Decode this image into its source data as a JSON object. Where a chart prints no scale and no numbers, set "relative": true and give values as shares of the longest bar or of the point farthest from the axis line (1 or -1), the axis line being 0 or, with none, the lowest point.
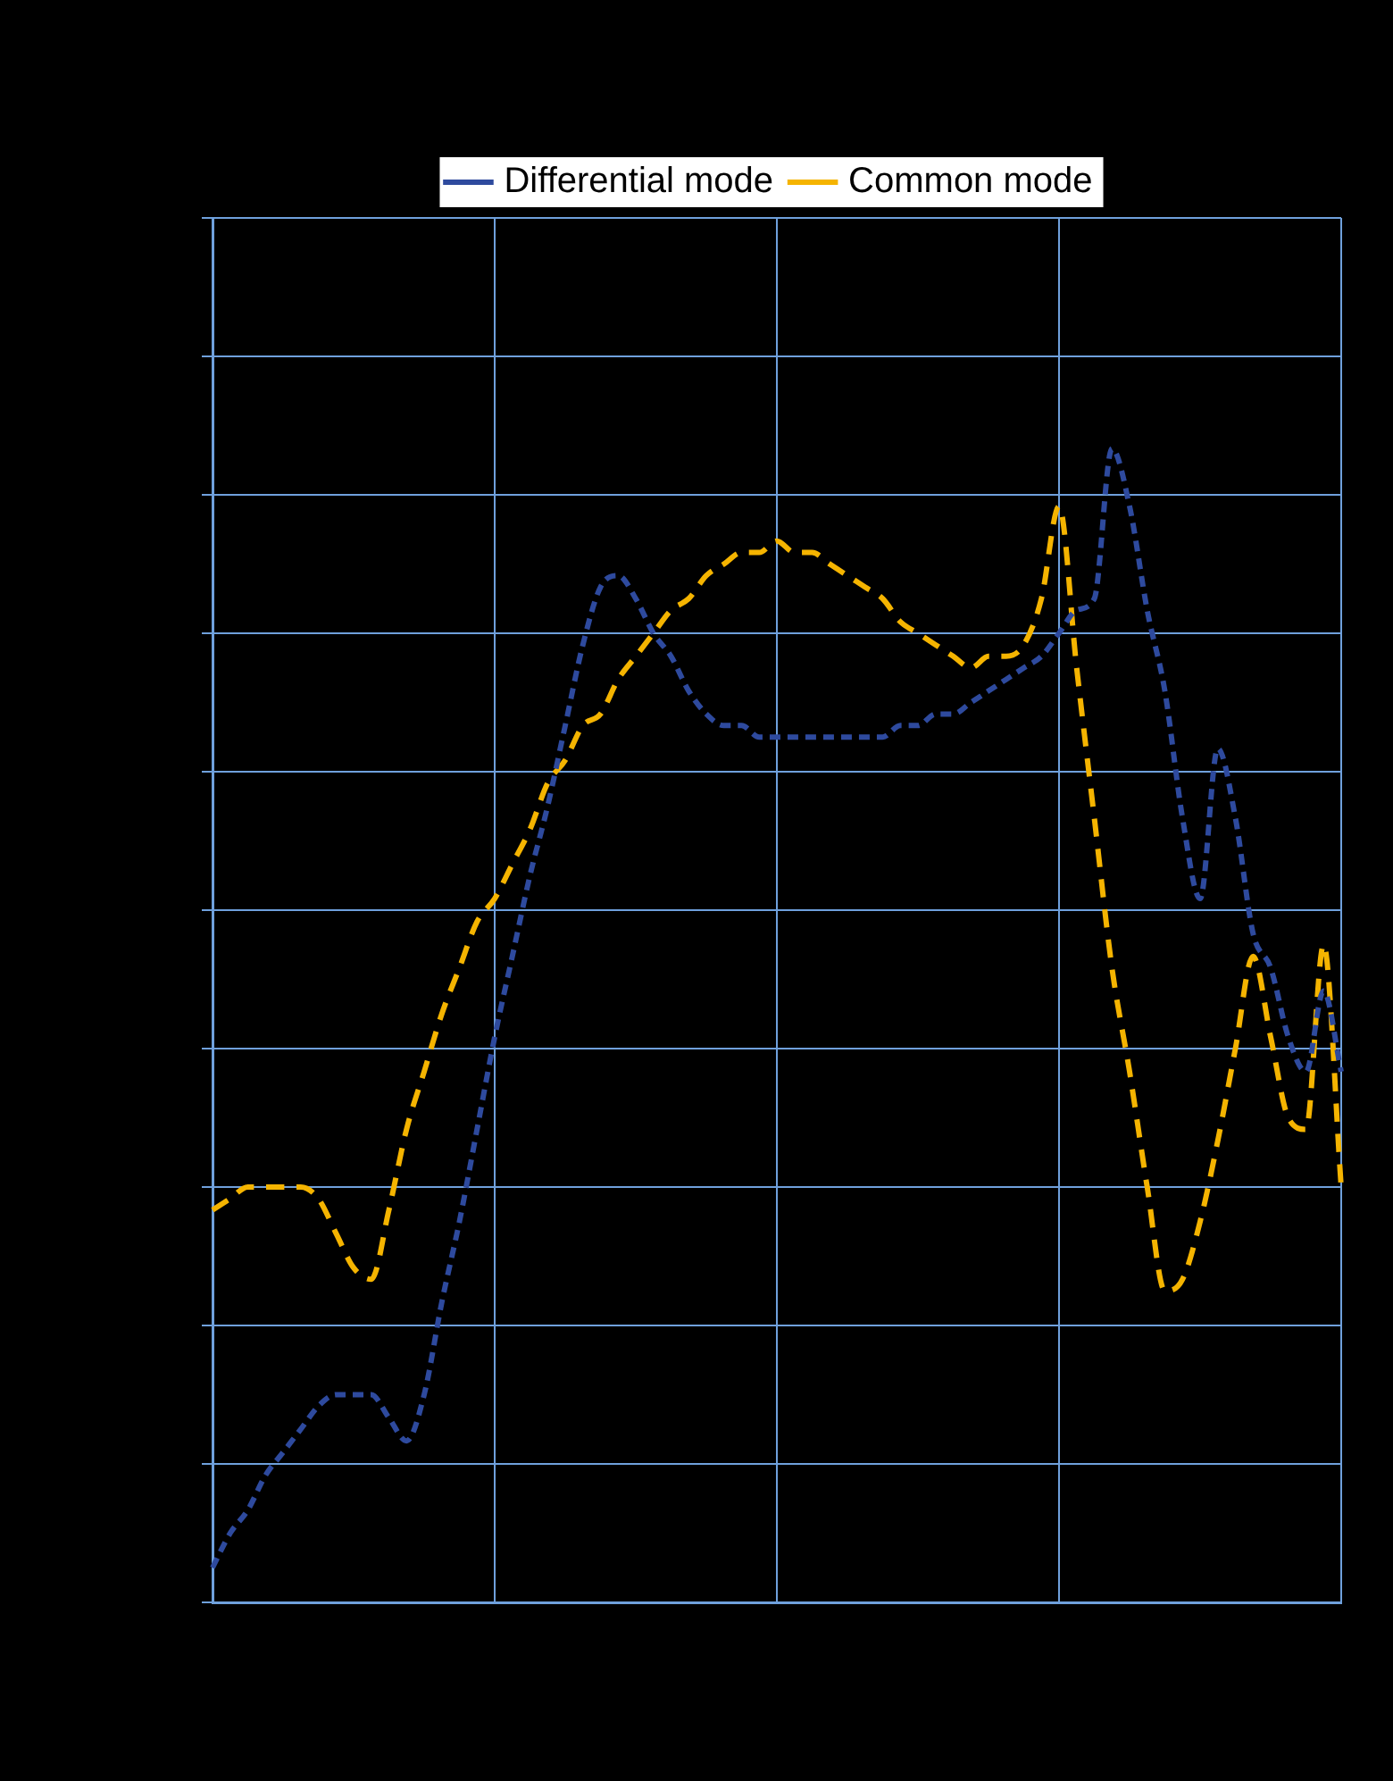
{
  "chart_data": {
    "type": "line",
    "relative": true,
    "grid": true,
    "legend": "top",
    "line_style": "dashed",
    "marker": "none",
    "categories": [
      null,
      null,
      null,
      null,
      null,
      null,
      null,
      null,
      null,
      null,
      null,
      null,
      null,
      null,
      null,
      null,
      null,
      null,
      null,
      null,
      null,
      null,
      null,
      null,
      null,
      null,
      null,
      null,
      null,
      null,
      null,
      null,
      null,
      null,
      null,
      null,
      null,
      null,
      null,
      null,
      null,
      null,
      null,
      null,
      null,
      null,
      null,
      null,
      null,
      null,
      null,
      null,
      null,
      null,
      null,
      null,
      null,
      null,
      null,
      null,
      null,
      null,
      null,
      null,
      null
    ],
    "series": [
      {
        "name": "Differential mode",
        "color": "#2e4a9e",
        "values": [
          0.03,
          0.06,
          0.08,
          0.11,
          0.13,
          0.15,
          0.17,
          0.18,
          0.18,
          0.18,
          0.16,
          0.14,
          0.18,
          0.26,
          0.33,
          0.41,
          0.49,
          0.56,
          0.63,
          0.69,
          0.76,
          0.83,
          0.88,
          0.89,
          0.87,
          0.84,
          0.82,
          0.79,
          0.77,
          0.76,
          0.76,
          0.75,
          0.75,
          0.75,
          0.75,
          0.75,
          0.75,
          0.75,
          0.75,
          0.76,
          0.76,
          0.77,
          0.77,
          0.78,
          0.79,
          0.8,
          0.81,
          0.82,
          0.84,
          0.86,
          0.87,
          1,
          0.95,
          0.86,
          0.79,
          0.68,
          0.61,
          0.74,
          0.68,
          0.58,
          0.55,
          0.49,
          0.46,
          0.53,
          0.46
        ]
      },
      {
        "name": "Common mode",
        "color": "#f5b400",
        "values": [
          0.34,
          0.35,
          0.36,
          0.36,
          0.36,
          0.36,
          0.35,
          0.32,
          0.29,
          0.28,
          0.34,
          0.41,
          0.46,
          0.51,
          0.55,
          0.59,
          0.61,
          0.64,
          0.67,
          0.71,
          0.73,
          0.76,
          0.77,
          0.8,
          0.82,
          0.84,
          0.86,
          0.87,
          0.89,
          0.9,
          0.91,
          0.91,
          0.92,
          0.91,
          0.91,
          0.9,
          0.89,
          0.88,
          0.87,
          0.85,
          0.84,
          0.83,
          0.82,
          0.81,
          0.82,
          0.82,
          0.83,
          0.87,
          0.95,
          0.81,
          0.68,
          0.55,
          0.46,
          0.36,
          0.27,
          0.28,
          0.33,
          0.4,
          0.48,
          0.56,
          0.49,
          0.42,
          0.41,
          0.57,
          0.36
        ]
      }
    ]
  }
}
